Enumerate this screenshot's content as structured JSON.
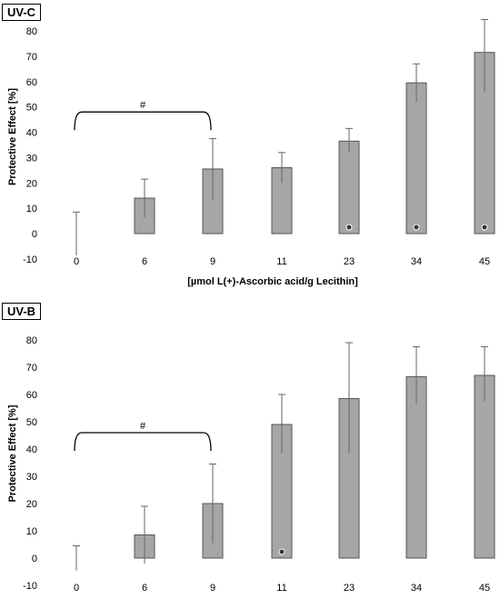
{
  "chart_data": [
    {
      "panel_label": "UV-C",
      "type": "bar",
      "categories": [
        "0",
        "6",
        "9",
        "11",
        "23",
        "34",
        "45"
      ],
      "values": [
        0,
        14,
        25.5,
        26,
        36.5,
        59.5,
        71.5
      ],
      "error_low": [
        -8.5,
        6.5,
        13.5,
        20,
        32,
        52,
        56
      ],
      "error_high": [
        8.5,
        21.5,
        37.5,
        32,
        41.5,
        67,
        84.5
      ],
      "significant_marker": [
        false,
        false,
        false,
        false,
        true,
        true,
        true
      ],
      "bracket": {
        "from": "0",
        "to": "9",
        "label": "#"
      },
      "ylabel": "Protective Effect [%]",
      "xlabel": "[µmol L(+)-Ascorbic acid/g Lecithin]",
      "yticks": [
        -10,
        0,
        10,
        20,
        30,
        40,
        50,
        60,
        70,
        80
      ],
      "ylim": [
        -10,
        80
      ],
      "bar_color": "#a6a6a6"
    },
    {
      "panel_label": "UV-B",
      "type": "bar",
      "categories": [
        "0",
        "6",
        "9",
        "11",
        "23",
        "34",
        "45"
      ],
      "values": [
        0,
        8.5,
        20,
        49,
        58.5,
        66.5,
        67
      ],
      "error_low": [
        -4.5,
        -2,
        5.5,
        38.5,
        38.5,
        56.5,
        57.5
      ],
      "error_high": [
        4.5,
        19,
        34.5,
        60,
        79,
        77.5,
        77.5
      ],
      "significant_marker": [
        false,
        false,
        false,
        true,
        false,
        false,
        false
      ],
      "bracket": {
        "from": "0",
        "to": "9",
        "label": "#"
      },
      "ylabel": "Protective Effect [%]",
      "xlabel": "[µmol L(+)-Ascorbic acid/g Lecithin]",
      "yticks": [
        -10,
        0,
        10,
        20,
        30,
        40,
        50,
        60,
        70,
        80
      ],
      "ylim": [
        -10,
        80
      ],
      "bar_color": "#a6a6a6"
    }
  ]
}
